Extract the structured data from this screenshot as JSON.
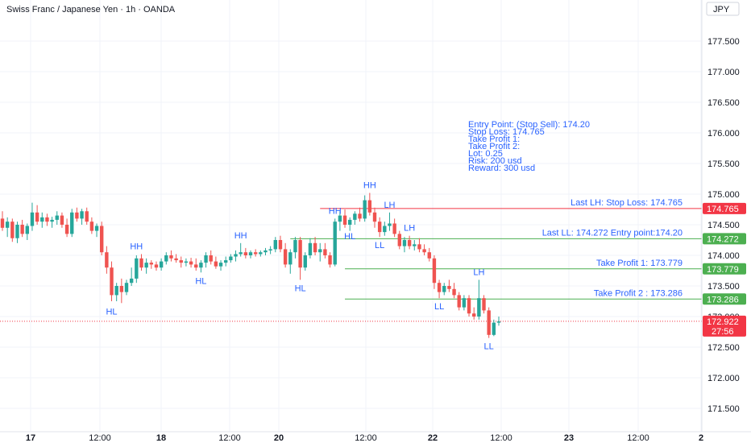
{
  "header": {
    "symbol": "Swiss Franc / Japanese Yen · 1h · OANDA",
    "currency": "JPY"
  },
  "colors": {
    "up": "#26a69a",
    "down": "#ef5350",
    "grid": "#f0f3fa",
    "text": "#131722",
    "annotation": "#2962ff",
    "stop_loss_line": "#f23645",
    "entry_line": "#4caf50",
    "price_tag": "#f23645"
  },
  "chart_data": {
    "type": "candlestick",
    "y_axis": {
      "ticks": [
        171.5,
        172.0,
        172.5,
        173.0,
        173.5,
        174.0,
        174.5,
        175.0,
        175.5,
        176.0,
        176.5,
        177.0,
        177.5
      ],
      "tick_labels": [
        "171.500",
        "172.000",
        "172.500",
        "173.000",
        "173.500",
        "174.000",
        "174.500",
        "175.000",
        "175.500",
        "176.000",
        "176.500",
        "177.000",
        "177.500"
      ],
      "ylim": [
        171.2,
        178.0
      ]
    },
    "x_axis": {
      "tick_labels": [
        "17",
        "12:00",
        "18",
        "12:00",
        "20",
        "12:00",
        "22",
        "12:00",
        "23",
        "12:00",
        "2"
      ]
    },
    "candles": [
      [
        174.6,
        174.72,
        174.4,
        174.45
      ],
      [
        174.45,
        174.62,
        174.3,
        174.55
      ],
      [
        174.55,
        174.6,
        174.22,
        174.28
      ],
      [
        174.28,
        174.55,
        174.2,
        174.5
      ],
      [
        174.5,
        174.58,
        174.3,
        174.35
      ],
      [
        174.35,
        174.52,
        174.25,
        174.48
      ],
      [
        174.48,
        174.86,
        174.4,
        174.7
      ],
      [
        174.7,
        174.82,
        174.5,
        174.55
      ],
      [
        174.55,
        174.7,
        174.45,
        174.62
      ],
      [
        174.62,
        174.68,
        174.48,
        174.55
      ],
      [
        174.55,
        174.63,
        174.45,
        174.58
      ],
      [
        174.58,
        174.72,
        174.5,
        174.65
      ],
      [
        174.65,
        174.7,
        174.45,
        174.5
      ],
      [
        174.5,
        174.6,
        174.3,
        174.35
      ],
      [
        174.35,
        174.76,
        174.3,
        174.7
      ],
      [
        174.7,
        174.78,
        174.55,
        174.6
      ],
      [
        174.6,
        174.76,
        174.5,
        174.72
      ],
      [
        174.72,
        174.78,
        174.5,
        174.55
      ],
      [
        174.55,
        174.62,
        174.35,
        174.4
      ],
      [
        174.4,
        174.52,
        174.3,
        174.48
      ],
      [
        174.48,
        174.55,
        174.0,
        174.05
      ],
      [
        174.05,
        174.15,
        173.7,
        173.8
      ],
      [
        173.8,
        173.9,
        173.25,
        173.35
      ],
      [
        173.35,
        173.55,
        173.25,
        173.5
      ],
      [
        173.5,
        173.62,
        173.22,
        173.4
      ],
      [
        173.4,
        173.6,
        173.35,
        173.55
      ],
      [
        173.55,
        173.8,
        173.5,
        173.62
      ],
      [
        173.62,
        174.0,
        173.55,
        173.95
      ],
      [
        173.95,
        174.02,
        173.75,
        173.8
      ],
      [
        173.8,
        173.95,
        173.7,
        173.88
      ],
      [
        173.88,
        173.92,
        173.78,
        173.85
      ],
      [
        173.85,
        173.9,
        173.75,
        173.8
      ],
      [
        173.8,
        173.95,
        173.75,
        173.9
      ],
      [
        173.9,
        174.05,
        173.85,
        174.0
      ],
      [
        174.0,
        174.08,
        173.9,
        173.95
      ],
      [
        173.95,
        174.02,
        173.88,
        173.92
      ],
      [
        173.92,
        173.98,
        173.8,
        173.88
      ],
      [
        173.88,
        173.95,
        173.82,
        173.9
      ],
      [
        173.9,
        173.96,
        173.8,
        173.85
      ],
      [
        173.85,
        173.95,
        173.75,
        173.8
      ],
      [
        173.8,
        173.92,
        173.72,
        173.88
      ],
      [
        173.88,
        174.05,
        173.8,
        174.0
      ],
      [
        174.0,
        174.08,
        173.85,
        173.9
      ],
      [
        173.9,
        173.98,
        173.78,
        173.82
      ],
      [
        173.82,
        173.92,
        173.75,
        173.88
      ],
      [
        173.88,
        173.98,
        173.82,
        173.92
      ],
      [
        173.92,
        174.02,
        173.88,
        173.98
      ],
      [
        173.98,
        174.08,
        173.9,
        174.02
      ],
      [
        174.02,
        174.2,
        173.98,
        174.05
      ],
      [
        174.05,
        174.12,
        173.95,
        174.0
      ],
      [
        174.0,
        174.08,
        173.95,
        174.05
      ],
      [
        174.05,
        174.1,
        173.98,
        174.02
      ],
      [
        174.02,
        174.08,
        173.98,
        174.05
      ],
      [
        174.05,
        174.12,
        174.0,
        174.08
      ],
      [
        174.08,
        174.15,
        174.02,
        174.1
      ],
      [
        174.1,
        174.3,
        174.05,
        174.25
      ],
      [
        174.25,
        174.32,
        174.05,
        174.1
      ],
      [
        174.1,
        174.2,
        173.8,
        173.85
      ],
      [
        173.85,
        174.1,
        173.7,
        174.05
      ],
      [
        174.05,
        174.3,
        173.95,
        174.25
      ],
      [
        174.25,
        174.3,
        173.6,
        173.8
      ],
      [
        173.8,
        174.05,
        173.75,
        174.0
      ],
      [
        174.0,
        174.28,
        173.95,
        174.2
      ],
      [
        174.2,
        174.3,
        174.0,
        174.05
      ],
      [
        174.05,
        174.2,
        173.9,
        174.1
      ],
      [
        174.1,
        174.2,
        173.95,
        174.0
      ],
      [
        174.0,
        174.05,
        173.8,
        173.85
      ],
      [
        173.85,
        174.6,
        173.82,
        174.55
      ],
      [
        174.55,
        174.72,
        174.4,
        174.65
      ],
      [
        174.65,
        174.75,
        174.45,
        174.5
      ],
      [
        174.5,
        174.62,
        174.4,
        174.58
      ],
      [
        174.58,
        174.72,
        174.5,
        174.68
      ],
      [
        174.68,
        174.78,
        174.55,
        174.6
      ],
      [
        174.6,
        174.98,
        174.55,
        174.9
      ],
      [
        174.9,
        175.02,
        174.65,
        174.7
      ],
      [
        174.7,
        174.78,
        174.45,
        174.55
      ],
      [
        174.55,
        174.62,
        174.3,
        174.38
      ],
      [
        174.38,
        174.55,
        174.32,
        174.48
      ],
      [
        174.48,
        174.7,
        174.4,
        174.52
      ],
      [
        174.52,
        174.6,
        174.3,
        174.35
      ],
      [
        174.35,
        174.4,
        174.1,
        174.15
      ],
      [
        174.15,
        174.3,
        174.05,
        174.25
      ],
      [
        174.25,
        174.32,
        174.1,
        174.15
      ],
      [
        174.15,
        174.25,
        174.08,
        174.18
      ],
      [
        174.18,
        174.28,
        174.05,
        174.1
      ],
      [
        174.1,
        174.18,
        174.0,
        174.05
      ],
      [
        174.05,
        174.12,
        173.9,
        173.95
      ],
      [
        173.95,
        174.0,
        173.45,
        173.55
      ],
      [
        173.55,
        173.6,
        173.3,
        173.4
      ],
      [
        173.4,
        173.55,
        173.35,
        173.5
      ],
      [
        173.5,
        173.6,
        173.4,
        173.45
      ],
      [
        173.45,
        173.55,
        173.3,
        173.35
      ],
      [
        173.35,
        173.4,
        173.1,
        173.15
      ],
      [
        173.15,
        173.35,
        173.1,
        173.3
      ],
      [
        173.3,
        173.35,
        173.0,
        173.05
      ],
      [
        173.05,
        173.15,
        172.95,
        173.0
      ],
      [
        173.0,
        173.6,
        172.95,
        173.3
      ],
      [
        173.3,
        173.35,
        173.05,
        173.1
      ],
      [
        173.1,
        173.15,
        172.65,
        172.7
      ],
      [
        172.7,
        172.95,
        172.68,
        172.9
      ],
      [
        172.9,
        173.0,
        172.85,
        172.92
      ]
    ],
    "swing_labels": [
      {
        "text": "HL",
        "index": 22,
        "price": 173.22,
        "position": "below"
      },
      {
        "text": "HH",
        "index": 27,
        "price": 174.02,
        "position": "above"
      },
      {
        "text": "HL",
        "index": 40,
        "price": 173.72,
        "position": "below"
      },
      {
        "text": "HH",
        "index": 48,
        "price": 174.2,
        "position": "above"
      },
      {
        "text": "HL",
        "index": 60,
        "price": 173.6,
        "position": "below"
      },
      {
        "text": "HH",
        "index": 67,
        "price": 174.6,
        "position": "above"
      },
      {
        "text": "HL",
        "index": 70,
        "price": 174.45,
        "position": "below"
      },
      {
        "text": "HH",
        "index": 74,
        "price": 175.02,
        "position": "above"
      },
      {
        "text": "LH",
        "index": 78,
        "price": 174.7,
        "position": "above"
      },
      {
        "text": "LL",
        "index": 76,
        "price": 174.3,
        "position": "below"
      },
      {
        "text": "LH",
        "index": 82,
        "price": 174.32,
        "position": "above"
      },
      {
        "text": "LL",
        "index": 88,
        "price": 173.3,
        "position": "below"
      },
      {
        "text": "LH",
        "index": 96,
        "price": 173.6,
        "position": "above"
      },
      {
        "text": "LL",
        "index": 98,
        "price": 172.65,
        "position": "below"
      }
    ],
    "levels": [
      {
        "label": "Last LH: Stop Loss: 174.765",
        "price": 174.765,
        "tag": "174.765",
        "color": "#f23645",
        "start_index": 64
      },
      {
        "label": "Last LL: 174.272  Entry point:174.20",
        "price": 174.272,
        "tag": "174.272",
        "color": "#4caf50",
        "start_index": 58
      },
      {
        "label": "Take Profit 1:   173.779",
        "price": 173.779,
        "tag": "173.779",
        "color": "#4caf50",
        "start_index": 69
      },
      {
        "label": "Take Profit 2 :   173.286",
        "price": 173.286,
        "tag": "173.286",
        "color": "#4caf50",
        "start_index": 69
      }
    ],
    "last_price": {
      "price": 172.922,
      "tag": "172.922",
      "countdown": "27:56"
    }
  },
  "trade_note": {
    "lines": [
      "Entry Point: (Stop Sell): 174.20",
      "Stop Loss:  174.765",
      "Take Profit 1:",
      "Take Profit 2:",
      "Lot: 0.25",
      "Risk: 200 usd",
      "Reward: 300 usd"
    ]
  }
}
